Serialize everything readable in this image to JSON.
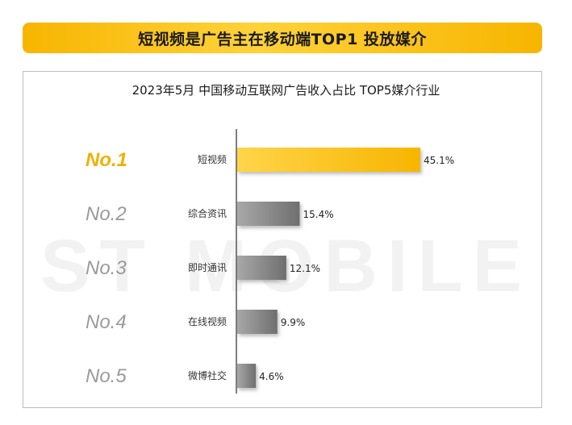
{
  "banner": {
    "title": "短视频是广告主在移动端TOP1 投放媒介"
  },
  "watermark": "ST MOBILE",
  "chart_data": {
    "type": "bar",
    "title": "2023年5月 中国移动互联网广告收入占比 TOP5媒介行业",
    "orientation": "horizontal",
    "ranks": [
      "No.1",
      "No.2",
      "No.3",
      "No.4",
      "No.5"
    ],
    "categories": [
      "短视频",
      "综合资讯",
      "即时通讯",
      "在线视频",
      "微博社交"
    ],
    "values": [
      45.1,
      15.4,
      12.1,
      9.9,
      4.6
    ],
    "value_labels": [
      "45.1%",
      "15.4%",
      "12.1%",
      "9.9%",
      "4.6%"
    ],
    "unit": "%",
    "xlim": [
      0,
      50
    ],
    "colors": {
      "top": "#f7b500",
      "rest": "#8a8a8a",
      "rank_top": "#f0b000",
      "rank_rest": "#9a9a9a"
    },
    "grid": false,
    "legend": "none"
  }
}
